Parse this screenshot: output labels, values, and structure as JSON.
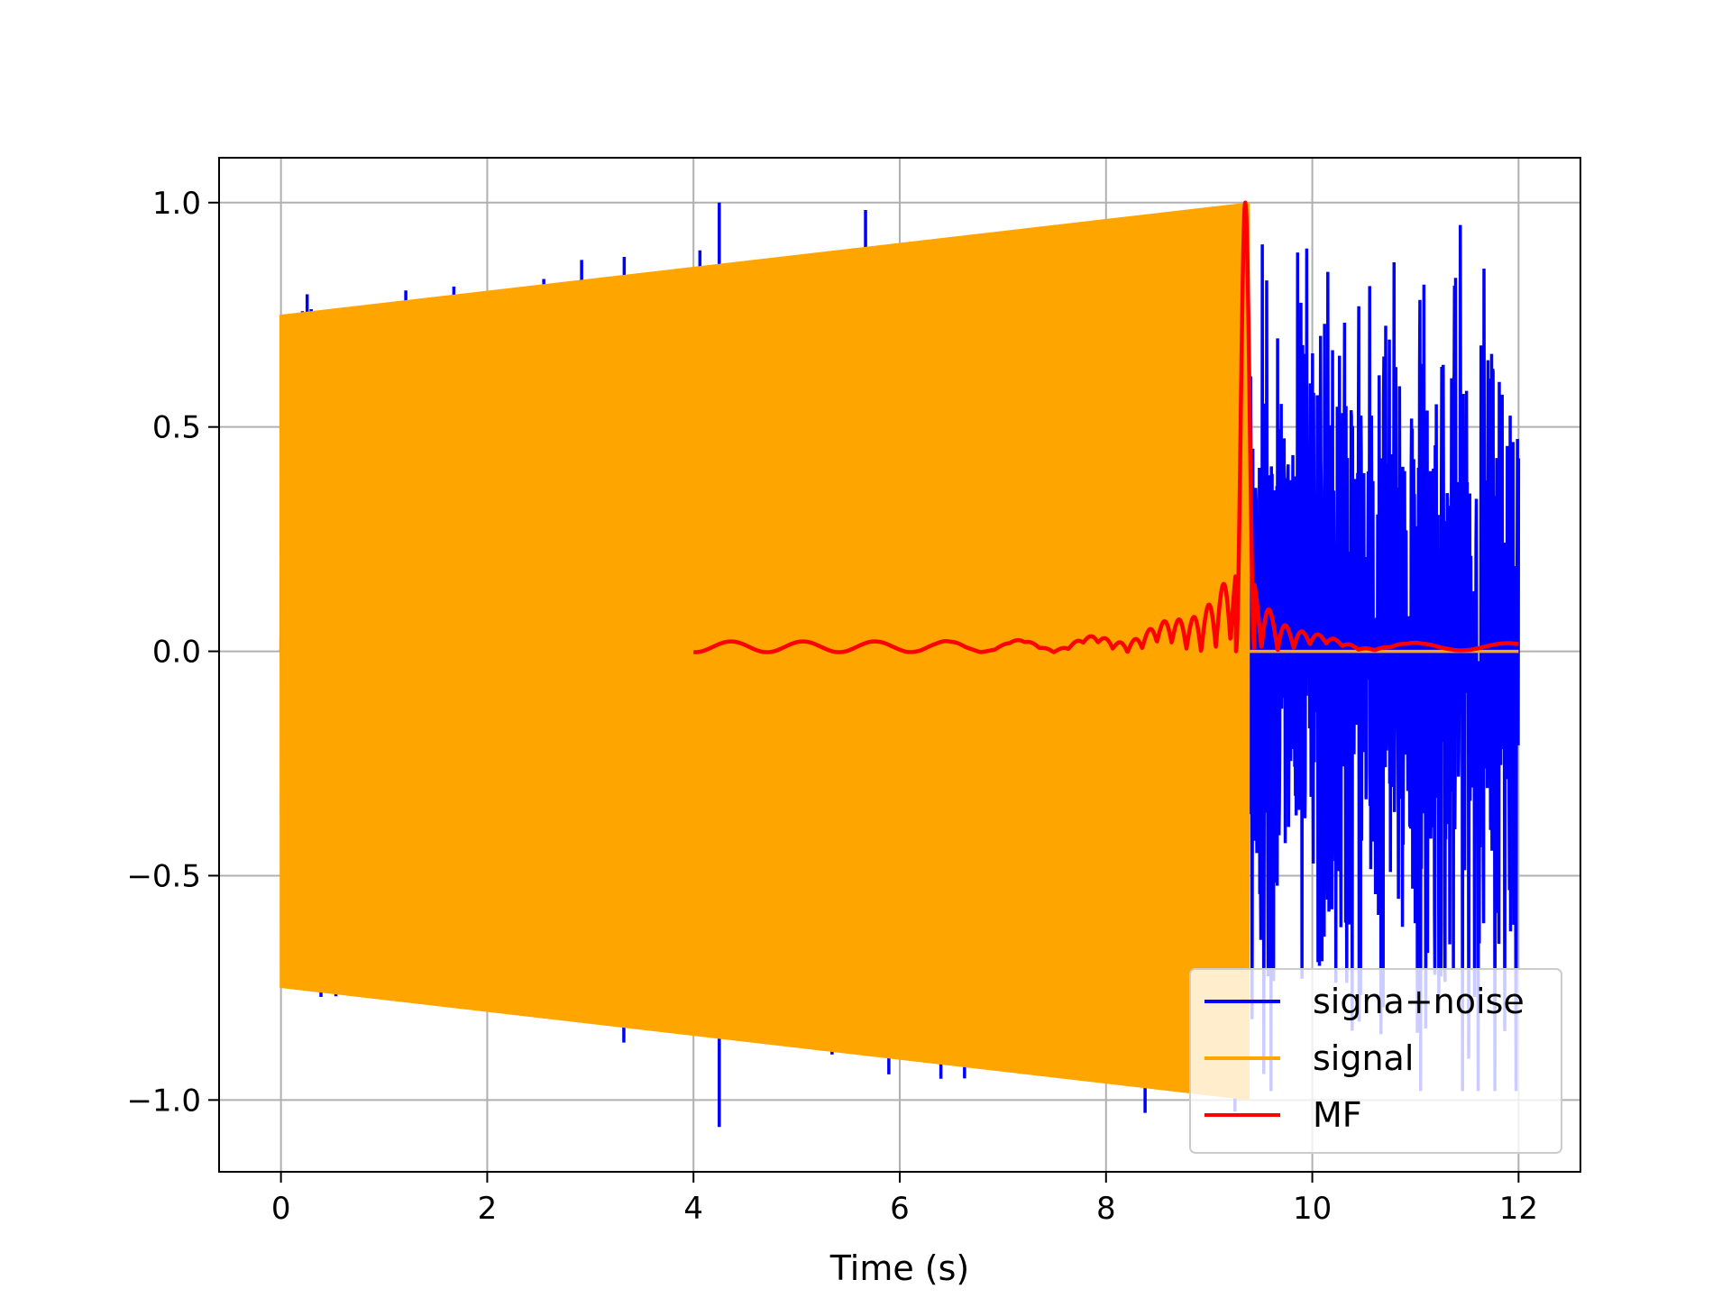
{
  "chart_data": {
    "type": "line",
    "title": "",
    "xlabel": "Time (s)",
    "ylabel": "",
    "xlim": [
      -0.6,
      12.6
    ],
    "ylim": [
      -1.16,
      1.1
    ],
    "xticks": [
      0,
      2,
      4,
      6,
      8,
      10,
      12
    ],
    "yticks": [
      -1.0,
      -0.5,
      0.0,
      0.5,
      1.0
    ],
    "xtick_labels": [
      "0",
      "2",
      "4",
      "6",
      "8",
      "10",
      "12"
    ],
    "ytick_labels": [
      "−1.0",
      "−0.5",
      "0.0",
      "0.5",
      "1.0"
    ],
    "grid": true,
    "legend_position": "lower right",
    "series": [
      {
        "name": "signa+noise",
        "color": "#0000ff",
        "description": "chirp signal plus noise, sampled 0 to 12 s",
        "notable_values": {
          "max": 1.0,
          "max_at": 4.25,
          "min": -1.06,
          "min_at": 4.25,
          "noise_only_region": [
            9.4,
            12.0
          ]
        }
      },
      {
        "name": "signal",
        "color": "#ffa500",
        "description": "oscillating chirp with envelope rising from 0.75 to 1.0, then zero",
        "envelope": {
          "x": [
            0,
            9.38
          ],
          "amplitude": [
            0.75,
            1.0
          ]
        },
        "zero_after": 9.38,
        "zero_until": 12.0
      },
      {
        "name": "MF",
        "color": "#ff0000",
        "description": "matched filter output, peak at signal end",
        "x_range": [
          4.0,
          12.0
        ],
        "peak_x": 9.35,
        "peak_y": 1.0,
        "baseline": 0.01
      }
    ]
  }
}
